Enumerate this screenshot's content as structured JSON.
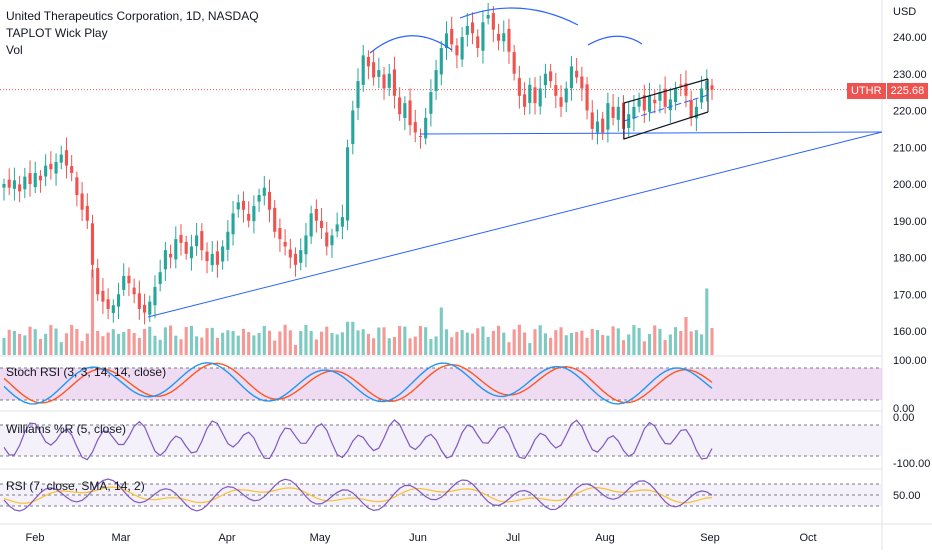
{
  "header": {
    "title": "United Therapeutics Corporation, 1D, NASDAQ",
    "indicator1": "TAPLOT Wick Play",
    "indicator2": "Vol"
  },
  "price_axis": {
    "currency": "USD",
    "ticks": [
      "240.00",
      "230.00",
      "220.00",
      "210.00",
      "200.00",
      "190.00",
      "180.00",
      "170.00",
      "160.00"
    ],
    "last_symbol": "UTHR",
    "last_price": "225.68"
  },
  "panes": {
    "stoch": {
      "label": "Stoch RSI (3, 3, 14, 14, close)",
      "ticks": [
        "100.00",
        "0.00"
      ]
    },
    "williams": {
      "label": "Williams %R (5, close)",
      "ticks": [
        "0.00",
        "-100.00"
      ]
    },
    "rsi": {
      "label": "RSI (7, close, SMA, 14, 2)",
      "ticks": [
        "50.00"
      ]
    }
  },
  "time_axis": [
    "Feb",
    "Mar",
    "Apr",
    "May",
    "Jun",
    "Jul",
    "Aug",
    "Sep",
    "Oct"
  ],
  "colors": {
    "up": "#26a69a",
    "down": "#ef5350",
    "line_blue": "#2962ff",
    "stoch_k": "#2196f3",
    "stoch_d": "#ff5722",
    "stoch_band": "#e1bee7",
    "williams": "#7e57c2",
    "rsi": "#7e57c2",
    "rsi_ma": "#fbc02d"
  },
  "chart_data": {
    "type": "candlestick",
    "title": "United Therapeutics Corporation, 1D, NASDAQ",
    "ylabel": "USD",
    "ylim": [
      155,
      248
    ],
    "last_price": 225.68,
    "months": [
      "Feb",
      "Mar",
      "Apr",
      "May",
      "Jun",
      "Jul",
      "Aug",
      "Sep",
      "Oct"
    ],
    "closes": [
      200,
      199,
      201,
      198,
      202,
      200,
      203,
      201,
      205,
      204,
      206,
      208,
      205,
      203,
      197,
      193,
      190,
      178,
      170,
      168,
      166,
      167,
      170,
      175,
      173,
      170,
      166,
      165,
      168,
      172,
      176,
      182,
      180,
      185,
      184,
      181,
      183,
      186,
      182,
      179,
      181,
      178,
      183,
      187,
      192,
      195,
      193,
      190,
      194,
      197,
      199,
      193,
      187,
      185,
      183,
      180,
      178,
      182,
      186,
      192,
      190,
      188,
      183,
      186,
      189,
      191,
      210,
      220,
      228,
      235,
      232,
      229,
      231,
      226,
      230,
      224,
      219,
      222,
      216,
      214,
      213,
      218,
      225,
      231,
      237,
      241,
      238,
      235,
      240,
      243,
      241,
      237,
      244,
      246,
      242,
      239,
      241,
      236,
      230,
      224,
      221,
      227,
      222,
      226,
      230,
      228,
      224,
      221,
      226,
      232,
      229,
      226,
      220,
      215,
      217,
      214,
      222,
      218,
      221,
      215,
      219,
      221,
      223,
      220,
      224,
      222,
      225,
      221,
      223,
      226,
      227,
      224,
      218,
      221,
      226,
      228,
      225.68
    ],
    "annotations": [
      "head-and-shoulders arcs",
      "neckline near 214",
      "ascending trendline",
      "rising channel"
    ]
  }
}
